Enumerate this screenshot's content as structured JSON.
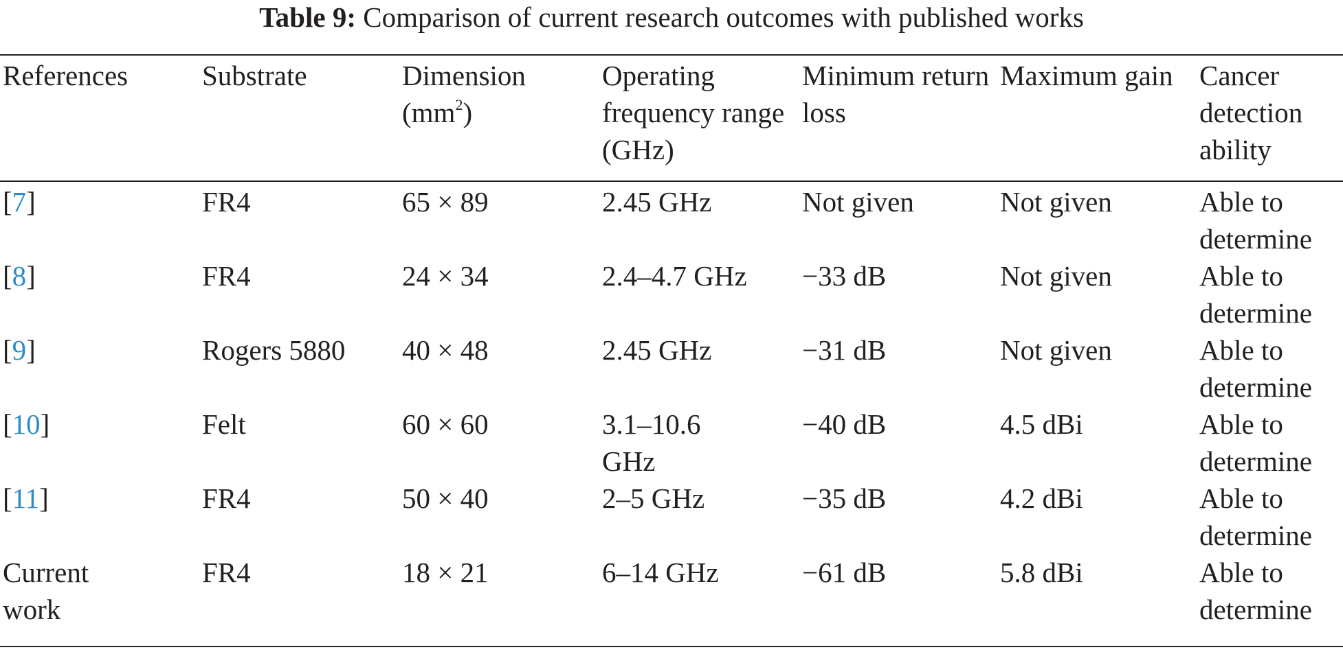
{
  "caption": {
    "label": "Table 9:",
    "title": "Comparison of current research outcomes with published works"
  },
  "colors": {
    "text": "#231f20",
    "reference_link": "#2e8bc9"
  },
  "table": {
    "headers": [
      "References",
      "Substrate",
      "Dimension (mm",
      "Operating frequency range (GHz)",
      "Minimum return loss",
      "Maximum gain",
      "Cancer detection ability"
    ],
    "dimension_unit_sup": "2",
    "dimension_unit_close": ")",
    "rows": [
      {
        "ref_open": "[",
        "ref_num": "7",
        "ref_close": "]",
        "substrate": "FR4",
        "dimension": "65 × 89",
        "frequency": "2.45 GHz",
        "return_loss": "Not given",
        "gain": "Not given",
        "ability": "Able to determine"
      },
      {
        "ref_open": "[",
        "ref_num": "8",
        "ref_close": "]",
        "substrate": "FR4",
        "dimension": "24 × 34",
        "frequency": "2.4–4.7 GHz",
        "return_loss": "−33 dB",
        "gain": "Not given",
        "ability": "Able to determine"
      },
      {
        "ref_open": "[",
        "ref_num": "9",
        "ref_close": "]",
        "substrate": "Rogers 5880",
        "dimension": "40 × 48",
        "frequency": "2.45 GHz",
        "return_loss": "−31 dB",
        "gain": "Not given",
        "ability": "Able to determine"
      },
      {
        "ref_open": "[",
        "ref_num": "10",
        "ref_close": "]",
        "substrate": "Felt",
        "dimension": "60 × 60",
        "frequency": "3.1–10.6 GHz",
        "return_loss": "−40 dB",
        "gain": "4.5 dBi",
        "ability": "Able to determine"
      },
      {
        "ref_open": "[",
        "ref_num": "11",
        "ref_close": "]",
        "substrate": "FR4",
        "dimension": "50 × 40",
        "frequency": "2–5 GHz",
        "return_loss": "−35 dB",
        "gain": "4.2 dBi",
        "ability": "Able to determine"
      },
      {
        "ref_text": "Current work",
        "substrate": "FR4",
        "dimension": "18 × 21",
        "frequency": "6–14 GHz",
        "return_loss": "−61 dB",
        "gain": "5.8 dBi",
        "ability": "Able to determine"
      }
    ]
  }
}
